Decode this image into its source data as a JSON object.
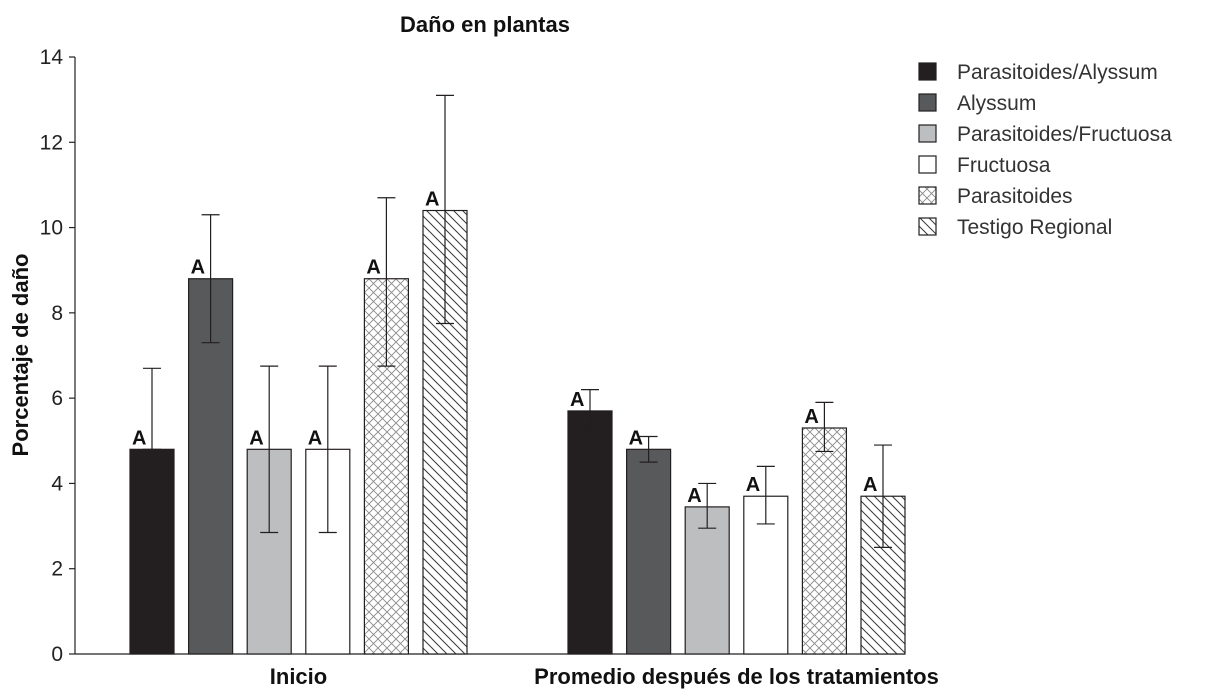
{
  "chart_data": {
    "type": "bar",
    "title": "Daño en plantas",
    "xlabel": "",
    "ylabel": "Porcentaje de daño",
    "ylim": [
      0,
      14
    ],
    "yticks": [
      0,
      2,
      4,
      6,
      8,
      10,
      12,
      14
    ],
    "grid": false,
    "legend_position": "top-right",
    "categories": [
      "Inicio",
      "Promedio después de los tratamientos"
    ],
    "series": [
      {
        "name": "Parasitoides/Alyssum",
        "values": [
          4.8,
          5.7
        ],
        "error_low": [
          4.8,
          5.2
        ],
        "error_high": [
          6.7,
          6.2
        ],
        "labels": [
          "A",
          "A"
        ],
        "fill": "#231f20",
        "pattern": "solid"
      },
      {
        "name": "Alyssum",
        "values": [
          8.8,
          4.8
        ],
        "error_low": [
          7.3,
          4.5
        ],
        "error_high": [
          10.3,
          5.1
        ],
        "labels": [
          "A",
          "A"
        ],
        "fill": "#58595b",
        "pattern": "solid"
      },
      {
        "name": "Parasitoides/Fructuosa",
        "values": [
          4.8,
          3.45
        ],
        "error_low": [
          2.85,
          2.95
        ],
        "error_high": [
          6.75,
          4.0
        ],
        "labels": [
          "A",
          "A"
        ],
        "fill": "#bcbec0",
        "pattern": "solid"
      },
      {
        "name": "Fructuosa",
        "values": [
          4.8,
          3.7
        ],
        "error_low": [
          2.85,
          3.05
        ],
        "error_high": [
          6.75,
          4.4
        ],
        "labels": [
          "A",
          "A"
        ],
        "fill": "#ffffff",
        "pattern": "solid"
      },
      {
        "name": "Parasitoides",
        "values": [
          8.8,
          5.3
        ],
        "error_low": [
          6.75,
          4.75
        ],
        "error_high": [
          10.7,
          5.9
        ],
        "labels": [
          "A",
          "A"
        ],
        "fill": "#ffffff",
        "pattern": "crosshatch"
      },
      {
        "name": "Testigo Regional",
        "values": [
          10.4,
          3.7
        ],
        "error_low": [
          7.75,
          2.5
        ],
        "error_high": [
          13.1,
          4.9
        ],
        "labels": [
          "A",
          "A"
        ],
        "fill": "#ffffff",
        "pattern": "diagonal"
      }
    ]
  }
}
